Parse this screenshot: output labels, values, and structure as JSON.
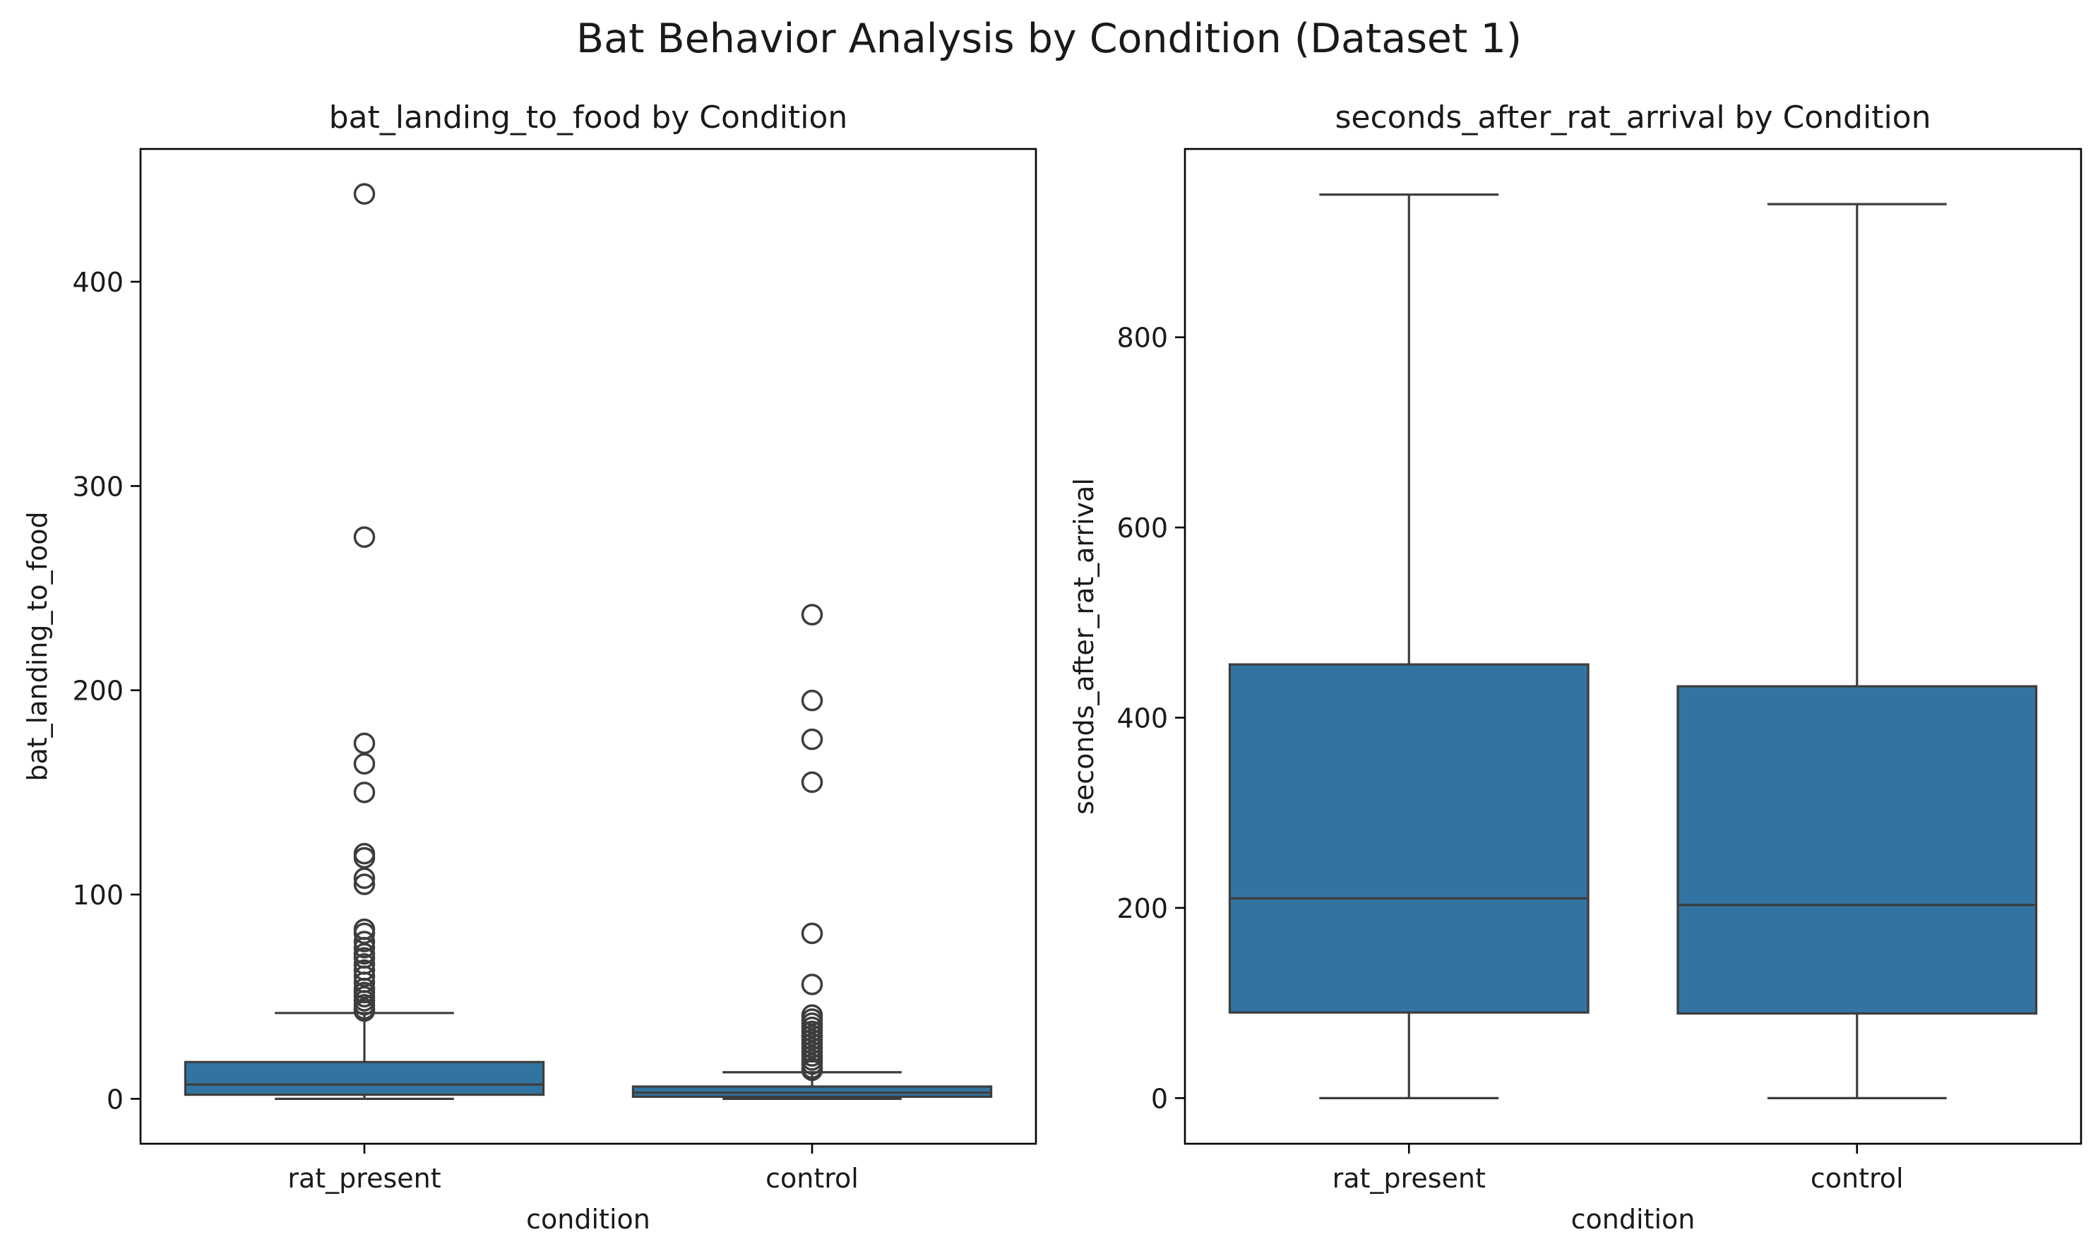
{
  "suptitle": "Bat Behavior Analysis by Condition (Dataset 1)",
  "colors": {
    "box_fill": "#3274a1",
    "line": "#3d3d3d",
    "axes": "#000000"
  },
  "chart_data": [
    {
      "type": "box",
      "title": "bat_landing_to_food by Condition",
      "xlabel": "condition",
      "ylabel": "bat_landing_to_food",
      "categories": [
        "rat_present",
        "control"
      ],
      "ylim": [
        -22,
        465
      ],
      "yticks": [
        0,
        100,
        200,
        300,
        400
      ],
      "grid": false,
      "boxes": [
        {
          "category": "rat_present",
          "whislo": 0,
          "q1": 2,
          "median": 7,
          "q3": 18,
          "whishi": 42,
          "fliers": [
            443,
            275,
            174,
            164,
            150,
            120,
            118,
            108,
            105,
            83,
            81,
            77,
            74,
            71,
            69,
            66,
            63,
            60,
            57,
            54,
            52,
            50,
            48,
            46,
            44,
            43
          ]
        },
        {
          "category": "control",
          "whislo": 0,
          "q1": 1,
          "median": 3,
          "q3": 6,
          "whishi": 13,
          "fliers": [
            237,
            195,
            176,
            155,
            81,
            56,
            41,
            39,
            37,
            35,
            33,
            31,
            29,
            27,
            25,
            23,
            21,
            19,
            17,
            15,
            14
          ]
        }
      ]
    },
    {
      "type": "box",
      "title": "seconds_after_rat_arrival by Condition",
      "xlabel": "condition",
      "ylabel": "seconds_after_rat_arrival",
      "categories": [
        "rat_present",
        "control"
      ],
      "ylim": [
        -48,
        998
      ],
      "yticks": [
        0,
        200,
        400,
        600,
        800
      ],
      "grid": false,
      "boxes": [
        {
          "category": "rat_present",
          "whislo": 0,
          "q1": 90,
          "median": 210,
          "q3": 456,
          "whishi": 950,
          "fliers": []
        },
        {
          "category": "control",
          "whislo": 0,
          "q1": 89,
          "median": 203,
          "q3": 433,
          "whishi": 940,
          "fliers": []
        }
      ]
    }
  ]
}
